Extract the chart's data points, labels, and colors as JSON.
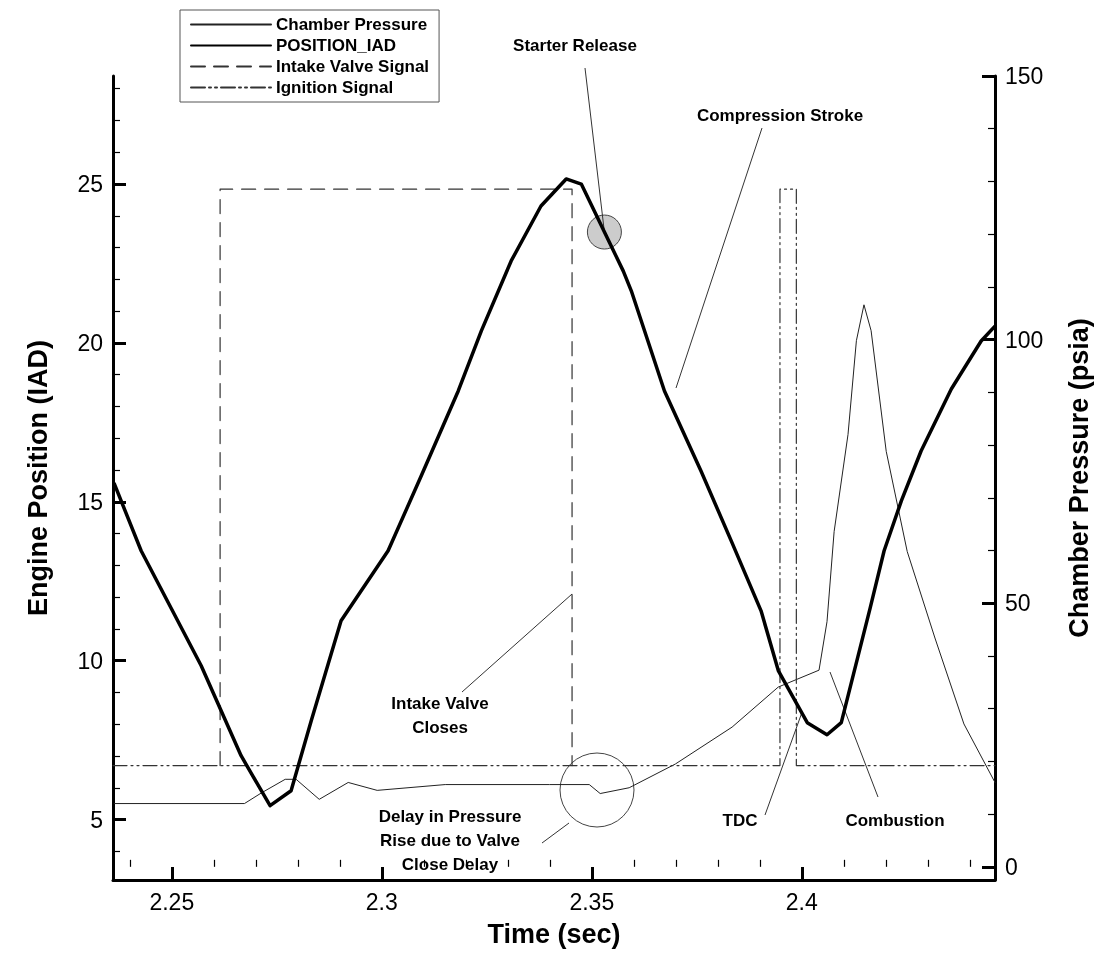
{
  "chart_data": {
    "type": "line",
    "xlabel": "Time (sec)",
    "ylabel": "Engine Position (IAD)",
    "y2label": "Chamber Pressure (psia)",
    "xlim": [
      2.236,
      2.446
    ],
    "xticks": [
      2.25,
      2.3,
      2.35,
      2.4,
      {
        "value": 2.24,
        "label": null
      },
      {
        "value": 2.26,
        "label": null
      },
      {
        "value": 2.27,
        "label": null
      },
      {
        "value": 2.28,
        "label": null
      },
      {
        "value": 2.29,
        "label": null
      },
      {
        "value": 2.31,
        "label": null
      },
      {
        "value": 2.32,
        "label": null
      },
      {
        "value": 2.33,
        "label": null
      },
      {
        "value": 2.34,
        "label": null
      },
      {
        "value": 2.36,
        "label": null
      },
      {
        "value": 2.37,
        "label": null
      },
      {
        "value": 2.38,
        "label": null
      },
      {
        "value": 2.39,
        "label": null
      },
      {
        "value": 2.41,
        "label": null
      },
      {
        "value": 2.42,
        "label": null
      },
      {
        "value": 2.43,
        "label": null
      },
      {
        "value": 2.44,
        "label": null
      }
    ],
    "ylim": [
      3.1,
      28.4
    ],
    "yticks": [
      5,
      10,
      15,
      20,
      25,
      {
        "value": 4,
        "label": null
      },
      {
        "value": 6,
        "label": null
      },
      {
        "value": 7,
        "label": null
      },
      {
        "value": 8,
        "label": null
      },
      {
        "value": 9,
        "label": null
      },
      {
        "value": 11,
        "label": null
      },
      {
        "value": 12,
        "label": null
      },
      {
        "value": 13,
        "label": null
      },
      {
        "value": 14,
        "label": null
      },
      {
        "value": 16,
        "label": null
      },
      {
        "value": 17,
        "label": null
      },
      {
        "value": 18,
        "label": null
      },
      {
        "value": 19,
        "label": null
      },
      {
        "value": 21,
        "label": null
      },
      {
        "value": 22,
        "label": null
      },
      {
        "value": 23,
        "label": null
      },
      {
        "value": 24,
        "label": null
      },
      {
        "value": 26,
        "label": null
      },
      {
        "value": 27,
        "label": null
      },
      {
        "value": 28,
        "label": null
      }
    ],
    "y2lim": [
      -2.5,
      150
    ],
    "y2ticks": [
      0,
      50,
      100,
      150,
      {
        "value": 10,
        "label": null
      },
      {
        "value": 20,
        "label": null
      },
      {
        "value": 30,
        "label": null
      },
      {
        "value": 40,
        "label": null
      },
      {
        "value": 60,
        "label": null
      },
      {
        "value": 70,
        "label": null
      },
      {
        "value": 80,
        "label": null
      },
      {
        "value": 90,
        "label": null
      },
      {
        "value": 110,
        "label": null
      },
      {
        "value": 120,
        "label": null
      },
      {
        "value": 130,
        "label": null
      },
      {
        "value": 140,
        "label": null
      }
    ],
    "grid": false,
    "legend": "top left",
    "marker": "none",
    "series": [
      {
        "name": "Chamber Pressure",
        "color": "#222222",
        "axis": "y2",
        "line_style": "solid",
        "x": [
          2.2363,
          2.2673,
          2.2713,
          2.277,
          2.2796,
          2.2851,
          2.292,
          2.2989,
          2.3151,
          2.3399,
          2.3494,
          2.352,
          2.3589,
          2.3699,
          2.3834,
          2.3944,
          2.4041,
          2.406,
          2.4077,
          2.411,
          2.413,
          2.4148,
          2.4165,
          2.4201,
          2.4251,
          2.4317,
          2.4386,
          2.446
        ],
        "values": [
          12.0,
          12.0,
          14.0,
          16.6,
          16.6,
          12.8,
          16.0,
          14.5,
          15.6,
          15.6,
          15.6,
          13.9,
          15.0,
          19.5,
          26.5,
          34.1,
          37.3,
          46.5,
          63.6,
          82,
          99.8,
          106.6,
          101.7,
          78.8,
          59.8,
          43.4,
          27.1,
          16
        ]
      },
      {
        "name": "POSITION_IAD",
        "color": "#000000",
        "line_style": "solid",
        "x": [
          2.2363,
          2.2427,
          2.257,
          2.2665,
          2.2734,
          2.2784,
          2.2832,
          2.2903,
          2.3015,
          2.3094,
          2.3182,
          2.3237,
          2.3308,
          2.3379,
          2.3439,
          2.3475,
          2.3575,
          2.3594,
          2.3673,
          2.376,
          2.3832,
          2.3903,
          2.3944,
          2.4013,
          2.406,
          2.4094,
          2.4163,
          2.4196,
          2.4237,
          2.4284,
          2.4356,
          2.4427,
          2.446
        ],
        "values": [
          15.57,
          13.46,
          9.84,
          7.01,
          5.44,
          5.91,
          8.11,
          11.26,
          13.46,
          15.82,
          18.49,
          20.38,
          22.58,
          24.31,
          25.16,
          25.0,
          22.26,
          21.64,
          18.49,
          15.97,
          13.77,
          11.57,
          9.69,
          8.05,
          7.67,
          8.05,
          11.67,
          13.46,
          15.03,
          16.6,
          18.55,
          20.06,
          20.53
        ]
      },
      {
        "name": "Intake Valve Signal",
        "color": "#333333",
        "line_style": "dashed",
        "x": [
          2.2615,
          2.2615,
          2.3453,
          2.3453
        ],
        "values": [
          6.7,
          24.84,
          24.84,
          6.7
        ]
      },
      {
        "name": "Ignition Signal",
        "color": "#333333",
        "line_style": "dashdot",
        "x": [
          2.236,
          2.3948,
          2.3948,
          2.3987,
          2.3987,
          2.446
        ],
        "values": [
          6.7,
          6.7,
          24.84,
          24.84,
          6.7,
          6.7
        ]
      }
    ],
    "annotations": [
      {
        "text": "Starter Release",
        "x": 2.353,
        "y": 23.49
      },
      "Compression Stroke",
      {
        "text": "Intake Valve\nCloses",
        "x": 2.3453,
        "y": 12.1
      },
      "Delay in Pressure\nRise due to Valve\nClose Delay",
      {
        "text": "TDC",
        "x": 2.4,
        "y": 8.36
      },
      "Combustion"
    ]
  }
}
